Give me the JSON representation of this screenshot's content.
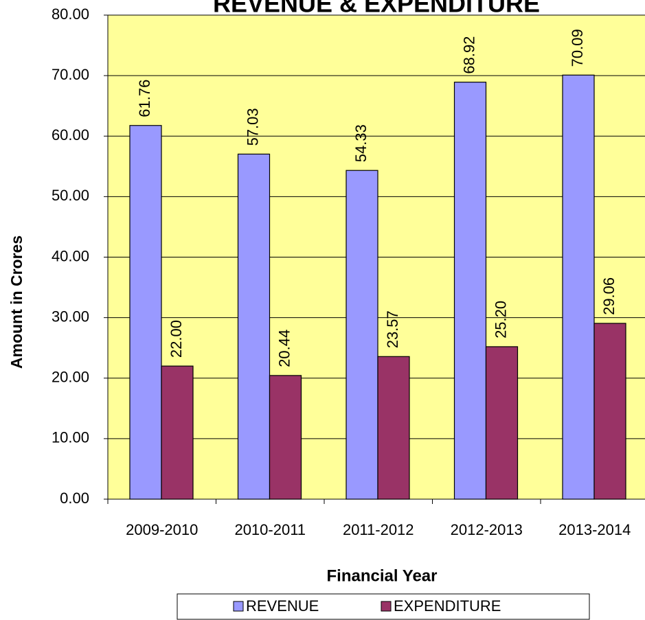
{
  "chart_data": {
    "type": "bar",
    "title": "REVENUE & EXPENDITURE",
    "x_label": "Financial Year",
    "y_label": "Amount in Crores",
    "categories": [
      "2009-2010",
      "2010-2011",
      "2011-2012",
      "2012-2013",
      "2013-2014"
    ],
    "series": [
      {
        "name": "REVENUE",
        "color": "#9999ff",
        "values": [
          61.76,
          57.03,
          54.33,
          68.92,
          70.09
        ],
        "value_labels": [
          "61.76",
          "57.03",
          "54.33",
          "68.92",
          "70.09"
        ]
      },
      {
        "name": "EXPENDITURE",
        "color": "#993366",
        "values": [
          22.0,
          20.44,
          23.57,
          25.2,
          29.06
        ],
        "value_labels": [
          "22.00",
          "20.44",
          "23.57",
          "25.20",
          "29.06"
        ]
      }
    ],
    "ylim": [
      0,
      80
    ],
    "yticks": [
      {
        "value": 0,
        "label": "0.00"
      },
      {
        "value": 10,
        "label": "10.00"
      },
      {
        "value": 20,
        "label": "20.00"
      },
      {
        "value": 30,
        "label": "30.00"
      },
      {
        "value": 40,
        "label": "40.00"
      },
      {
        "value": 50,
        "label": "50.00"
      },
      {
        "value": 60,
        "label": "60.00"
      },
      {
        "value": 70,
        "label": "70.00"
      },
      {
        "value": 80,
        "label": "80.00"
      }
    ],
    "grid": true,
    "legend": "bottom"
  }
}
